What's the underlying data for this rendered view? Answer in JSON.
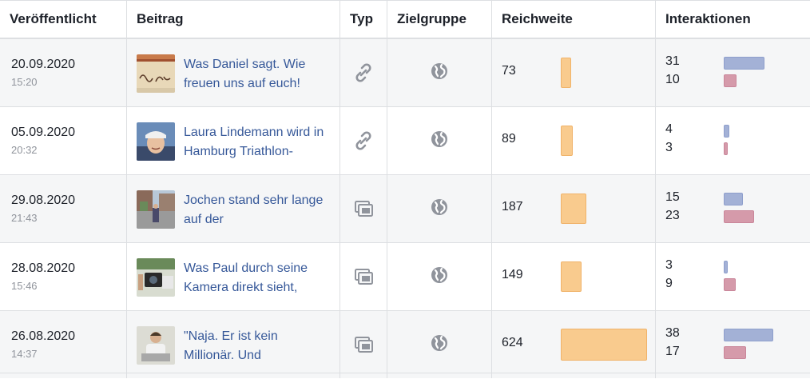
{
  "headers": {
    "published": "Veröffentlicht",
    "post": "Beitrag",
    "type": "Typ",
    "audience": "Zielgruppe",
    "reach": "Reichweite",
    "interactions": "Interaktionen"
  },
  "colors": {
    "reach_bar": "#f9cb8e",
    "clicks_bar": "#a3b1d6",
    "reactions_bar": "#d59aaa",
    "link": "#365899"
  },
  "reach_max": 624,
  "interactions_max": 38,
  "rows": [
    {
      "date": "20.09.2020",
      "time": "15:20",
      "text": "Was Daniel sagt. Wie freuen uns auf euch!",
      "thumb": "handwriting-photo",
      "type": "link-icon",
      "audience": "globe-icon",
      "reach": 73,
      "int_a": 31,
      "int_b": 10
    },
    {
      "date": "05.09.2020",
      "time": "20:32",
      "text": "Laura Lindemann wird in Hamburg Triathlon-",
      "thumb": "athlete-portrait-photo",
      "type": "link-icon",
      "audience": "globe-icon",
      "reach": 89,
      "int_a": 4,
      "int_b": 3
    },
    {
      "date": "29.08.2020",
      "time": "21:43",
      "text": "Jochen stand sehr lange auf der",
      "thumb": "street-photo",
      "type": "album-icon",
      "audience": "globe-icon",
      "reach": 187,
      "int_a": 15,
      "int_b": 23
    },
    {
      "date": "28.08.2020",
      "time": "15:46",
      "text": "Was Paul durch seine Kamera direkt sieht,",
      "thumb": "camera-photo",
      "type": "album-icon",
      "audience": "globe-icon",
      "reach": 149,
      "int_a": 3,
      "int_b": 9
    },
    {
      "date": "26.08.2020",
      "time": "14:37",
      "text": "\"Naja. Er ist kein Millionär. Und",
      "thumb": "person-photo",
      "type": "album-icon",
      "audience": "globe-icon",
      "reach": 624,
      "int_a": 38,
      "int_b": 17
    }
  ]
}
